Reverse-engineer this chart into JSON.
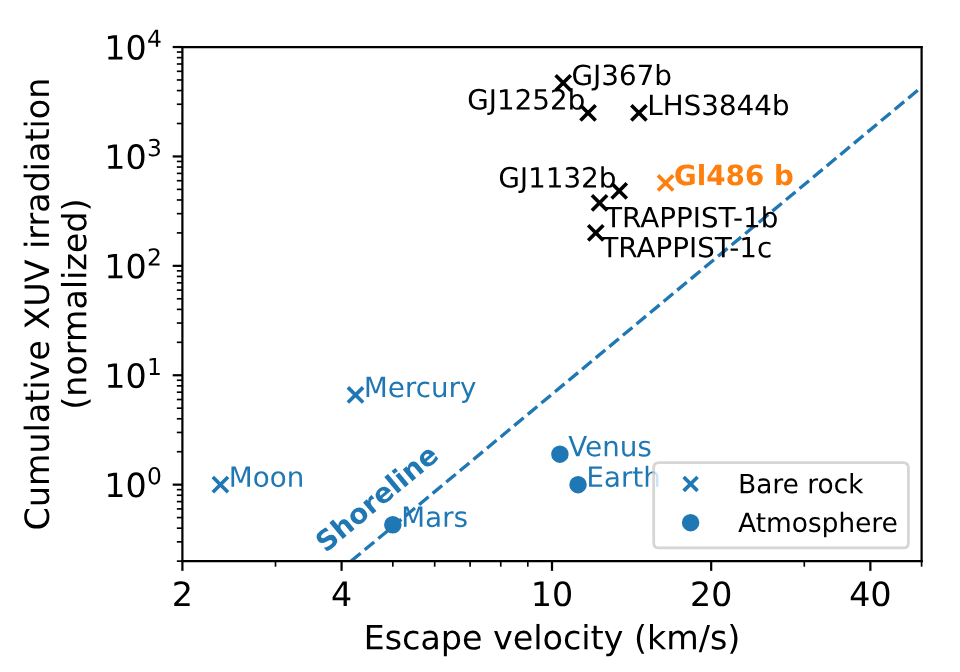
{
  "chart_data": {
    "type": "scatter",
    "xlabel": "Escape velocity (km/s)",
    "ylabel": "Cumulative XUV irradiation\n(normalized)",
    "log": "xy",
    "xlim": [
      2,
      50
    ],
    "ylim": [
      0.2,
      10000
    ],
    "xticks": [
      2,
      4,
      10,
      20,
      40
    ],
    "yticks": [
      {
        "value": 1,
        "label": "10$^{0}$"
      },
      {
        "value": 10,
        "label": "10$^{1}$"
      },
      {
        "value": 100,
        "label": "10$^{2}$"
      },
      {
        "value": 1000,
        "label": "10$^{3}$"
      },
      {
        "value": 10000,
        "label": "10$^{4}$"
      }
    ],
    "grid": false,
    "legend": "bottom right",
    "series": [
      {
        "name": "Bare rock",
        "marker": "cross",
        "color": "#1f77b4",
        "x": [
          10.5,
          11.7,
          14.6,
          13.4,
          16.4,
          12.3,
          12.1,
          4.25,
          2.36
        ],
        "values": [
          4700,
          2500,
          2500,
          484,
          572,
          376,
          200,
          6.6,
          1.0
        ],
        "colors": [
          "#000000",
          "#000000",
          "#000000",
          "#000000",
          "#ff7f0e",
          "#000000",
          "#000000",
          "#1f77b4",
          "#1f77b4"
        ]
      },
      {
        "name": "Atmosphere",
        "marker": "circle",
        "color": "#1f77b4",
        "x": [
          10.35,
          11.2,
          5.0
        ],
        "values": [
          1.9,
          1.0,
          0.43
        ]
      },
      {
        "type": "line",
        "line_style": "dashed",
        "color": "#1f77b4",
        "x": [
          4.17,
          50
        ],
        "values": [
          0.2,
          4300
        ]
      }
    ],
    "annotations": [
      {
        "text": "GJ367b",
        "x": 10.5,
        "y": 4700
      },
      {
        "text": "GJ1252b",
        "x": 11.7,
        "y": 2500
      },
      {
        "text": "LHS3844b",
        "x": 14.6,
        "y": 2500
      },
      {
        "text": "GJ1132b",
        "x": 13.4,
        "y": 484
      },
      {
        "text": "Gl486 b",
        "x": 16.4,
        "y": 572
      },
      {
        "text": "TRAPPIST-1b",
        "x": 12.3,
        "y": 376
      },
      {
        "text": "TRAPPIST-1c",
        "x": 12.1,
        "y": 200
      },
      {
        "text": "Mercury",
        "x": 4.25,
        "y": 6.6
      },
      {
        "text": "Moon",
        "x": 2.36,
        "y": 1.0
      },
      {
        "text": "Venus",
        "x": 10.35,
        "y": 1.9
      },
      {
        "text": "Earth",
        "x": 11.2,
        "y": 1.0
      },
      {
        "text": "Mars",
        "x": 5.0,
        "y": 0.43
      },
      "Shoreline"
    ]
  }
}
